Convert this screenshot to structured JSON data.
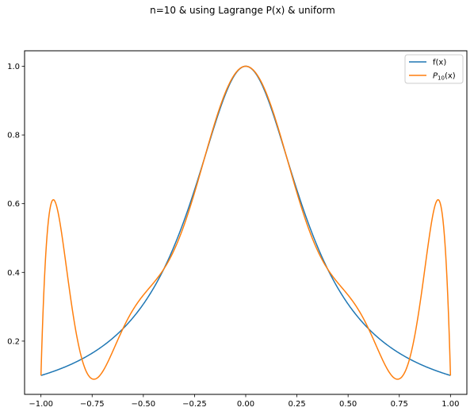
{
  "chart_data": {
    "type": "line",
    "title": "n=10 & using Lagrange P(x) & uniform",
    "xlabel": "",
    "ylabel": "",
    "xlim": [
      -1.08,
      1.08
    ],
    "ylim": [
      0.045,
      1.045
    ],
    "grid": false,
    "legend_position": "top-right",
    "x_ticks": [
      -1.0,
      -0.75,
      -0.5,
      -0.25,
      0.0,
      0.25,
      0.5,
      0.75,
      1.0
    ],
    "x_tick_labels": [
      "−1.00",
      "−0.75",
      "−0.50",
      "−0.25",
      "0.00",
      "0.25",
      "0.50",
      "0.75",
      "1.00"
    ],
    "y_ticks": [
      0.2,
      0.4,
      0.6,
      0.8,
      1.0
    ],
    "y_tick_labels": [
      "0.2",
      "0.4",
      "0.6",
      "0.8",
      "1.0"
    ],
    "series": [
      {
        "name": "f(x)",
        "color": "#1f77b4",
        "function": "1/(1+9x^2)",
        "x": [
          -1.0,
          -0.9,
          -0.8,
          -0.7,
          -0.6,
          -0.5,
          -0.4,
          -0.3,
          -0.2,
          -0.1,
          0.0,
          0.1,
          0.2,
          0.3,
          0.4,
          0.5,
          0.6,
          0.7,
          0.8,
          0.9,
          1.0
        ],
        "values": [
          0.1,
          0.121,
          0.148,
          0.185,
          0.236,
          0.308,
          0.41,
          0.552,
          0.735,
          0.917,
          1.0,
          0.917,
          0.735,
          0.552,
          0.41,
          0.308,
          0.236,
          0.185,
          0.148,
          0.121,
          0.1
        ]
      },
      {
        "name_main": "P",
        "name_sub": "10",
        "name_suffix": "(x)",
        "color": "#ff7f0e",
        "function": "degree-10 Lagrange interpolant of f on 11 uniform nodes",
        "x": [
          -1.0,
          -0.975,
          -0.95,
          -0.925,
          -0.9,
          -0.85,
          -0.8,
          -0.75,
          -0.7,
          -0.6,
          -0.5,
          -0.4,
          -0.3,
          -0.2,
          -0.1,
          0.0,
          0.1,
          0.2,
          0.3,
          0.4,
          0.5,
          0.6,
          0.7,
          0.75,
          0.8,
          0.85,
          0.9,
          0.925,
          0.95,
          0.975,
          1.0
        ],
        "values": [
          0.1,
          0.5,
          0.61,
          0.58,
          0.47,
          0.24,
          0.11,
          0.09,
          0.12,
          0.236,
          0.31,
          0.4,
          0.552,
          0.735,
          0.917,
          1.0,
          0.917,
          0.735,
          0.552,
          0.4,
          0.31,
          0.236,
          0.12,
          0.09,
          0.11,
          0.24,
          0.47,
          0.58,
          0.61,
          0.5,
          0.1
        ]
      }
    ]
  },
  "legend": {
    "entry_f": "f(x)",
    "entry_p_main": "P",
    "entry_p_sub": "10",
    "entry_p_suffix": "(x)"
  }
}
